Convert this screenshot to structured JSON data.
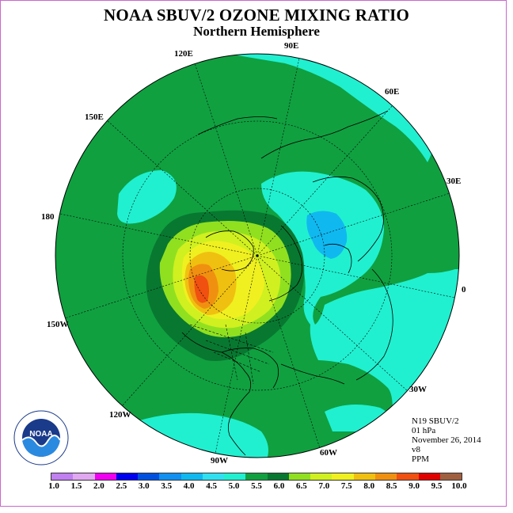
{
  "title": "NOAA SBUV/2 OZONE MIXING RATIO",
  "subtitle": "Northern Hemisphere",
  "longitude_labels": [
    {
      "text": "90E",
      "id": "lon-90e"
    },
    {
      "text": "60E",
      "id": "lon-60e"
    },
    {
      "text": "30E",
      "id": "lon-30e"
    },
    {
      "text": "0",
      "id": "lon-0"
    },
    {
      "text": "30W",
      "id": "lon-30w"
    },
    {
      "text": "60W",
      "id": "lon-60w"
    },
    {
      "text": "90W",
      "id": "lon-90w"
    },
    {
      "text": "120W",
      "id": "lon-120w"
    },
    {
      "text": "150W",
      "id": "lon-150w"
    },
    {
      "text": "180",
      "id": "lon-180"
    },
    {
      "text": "150E",
      "id": "lon-150e"
    },
    {
      "text": "120E",
      "id": "lon-120e"
    }
  ],
  "info": {
    "satellite": "N19 SBUV/2",
    "level": "01 hPa",
    "date": "November 26, 2014",
    "version": "v8",
    "units": "PPM"
  },
  "logo": {
    "text": "NOAA",
    "ring_text": "NATIONAL OCEANIC AND ATMOSPHERIC ADMINISTRATION · U.S. DEPARTMENT OF COMMERCE"
  },
  "colorbar": {
    "ticks": [
      "1.0",
      "1.5",
      "2.0",
      "2.5",
      "3.0",
      "3.5",
      "4.0",
      "4.5",
      "5.0",
      "5.5",
      "6.0",
      "6.5",
      "7.0",
      "7.5",
      "8.0",
      "8.5",
      "9.0",
      "9.5",
      "10.0"
    ],
    "colors": [
      "#c080f0",
      "#e0a8f0",
      "#f000f0",
      "#0000f0",
      "#0050e0",
      "#1090f0",
      "#10b8f0",
      "#30e0f0",
      "#20f0d0",
      "#10a040",
      "#087830",
      "#90e020",
      "#d0f020",
      "#f0f020",
      "#f0c010",
      "#f09010",
      "#f05010",
      "#e00000",
      "#a06040"
    ]
  },
  "map_colors": {
    "ocean_green": "#10a040",
    "dark_green": "#087830",
    "light_green": "#90e020",
    "yellow_green": "#d0f020",
    "yellow": "#f0f020",
    "gold": "#f0c010",
    "orange": "#f09010",
    "red_orange": "#f05010",
    "cyan_teal": "#20f0d0",
    "light_cyan": "#30e0f0",
    "sky_blue": "#10b8f0"
  }
}
